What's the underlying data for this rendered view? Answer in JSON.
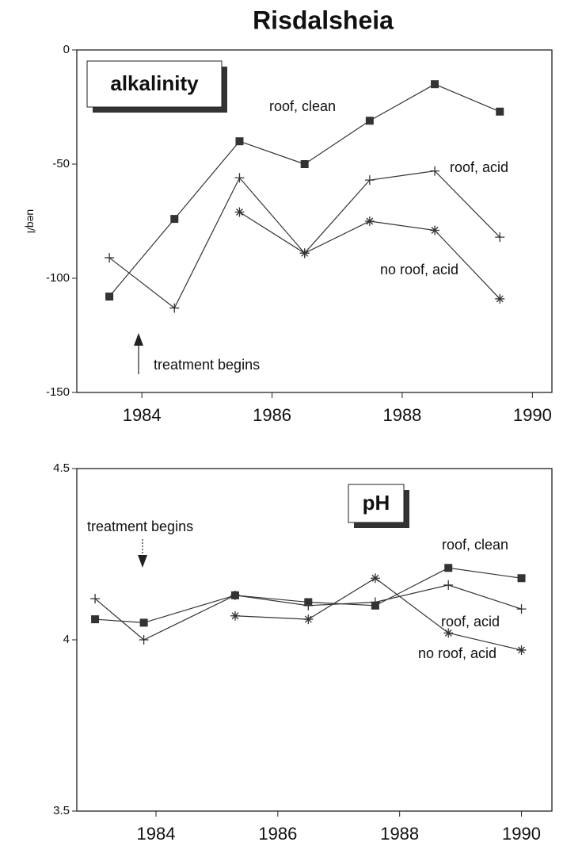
{
  "title": "Risdalsheia",
  "chart_data": [
    {
      "type": "line",
      "title": "alkalinity",
      "ylabel": "ueq/l",
      "x": [
        1983.5,
        1984.5,
        1985.5,
        1986.5,
        1987.5,
        1988.5,
        1989.5
      ],
      "xlim": [
        1983.0,
        1990.3
      ],
      "xticks": [
        1984,
        1986,
        1988,
        1990
      ],
      "ylim": [
        -150,
        0
      ],
      "yticks": [
        0,
        -50,
        -100,
        -150
      ],
      "series": [
        {
          "name": "roof, clean",
          "color": "#333333",
          "marker": "square",
          "values": [
            -108,
            -74,
            -40,
            -50,
            -31,
            -15,
            -27
          ]
        },
        {
          "name": "roof, acid",
          "color": "#333333",
          "marker": "plus",
          "values": [
            -91,
            -113,
            -56,
            -89,
            -57,
            -53,
            -82
          ]
        },
        {
          "name": "no roof, acid",
          "color": "#333333",
          "marker": "star",
          "values": [
            null,
            null,
            -71,
            -89,
            -75,
            -79,
            -109
          ]
        }
      ],
      "annotations": [
        "treatment begins"
      ]
    },
    {
      "type": "line",
      "title": "pH",
      "x": [
        1983.0,
        1983.8,
        1985.3,
        1986.5,
        1987.6,
        1988.8,
        1990.0
      ],
      "xlim": [
        1982.7,
        1990.5
      ],
      "xticks": [
        1984,
        1986,
        1988,
        1990
      ],
      "ylim": [
        3.5,
        4.5
      ],
      "yticks": [
        4.5,
        4,
        3.5
      ],
      "series": [
        {
          "name": "roof, clean",
          "color": "#333333",
          "marker": "square",
          "values": [
            4.06,
            4.05,
            4.13,
            4.11,
            4.1,
            4.21,
            4.18
          ]
        },
        {
          "name": "roof, acid",
          "color": "#333333",
          "marker": "plus",
          "values": [
            4.12,
            4.0,
            4.13,
            4.1,
            4.11,
            4.16,
            4.09
          ]
        },
        {
          "name": "no roof, acid",
          "color": "#333333",
          "marker": "star",
          "values": [
            null,
            null,
            4.07,
            4.06,
            4.18,
            4.02,
            3.97
          ]
        }
      ],
      "annotations": [
        "treatment begins"
      ]
    }
  ]
}
